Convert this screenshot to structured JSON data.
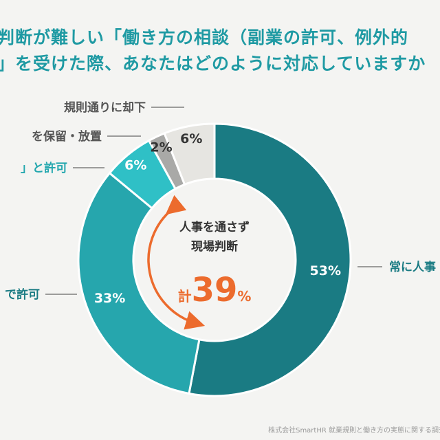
{
  "title_lines": [
    "判断が難しい「働き方の相談（副業の許可、例外的",
    "」を受けた際、あなたはどのように対応していますか"
  ],
  "chart_data": {
    "type": "donut",
    "slices": [
      {
        "label": "常に人事",
        "value": 53,
        "display": "53%",
        "color": "#1a7b83",
        "label_color": "#1a7b83"
      },
      {
        "label": "で許可",
        "value": 33,
        "display": "33%",
        "color": "#26a6ad",
        "label_color": "#1a7b83"
      },
      {
        "label": "」と許可",
        "value": 6,
        "display": "6%",
        "color": "#2fc0c6",
        "label_color": "#23a7ae"
      },
      {
        "label": "を保留・放置",
        "value": 2,
        "display": "2%",
        "color": "#a9a9a7",
        "label_color": "#555555"
      },
      {
        "label": "規則通りに却下",
        "value": 6,
        "display": "6%",
        "color": "#e6e5e1",
        "label_color": "#555555"
      }
    ],
    "center": {
      "line1": "人事を通さず",
      "line2": "現場判断",
      "total_prefix": "計",
      "total_value": "39",
      "total_suffix": "%"
    }
  },
  "colors": {
    "accent_orange": "#ec6b2d",
    "title": "#1f9aa3"
  },
  "source": "株式会社SmartHR 就業規則と働き方の実態に関する調査"
}
